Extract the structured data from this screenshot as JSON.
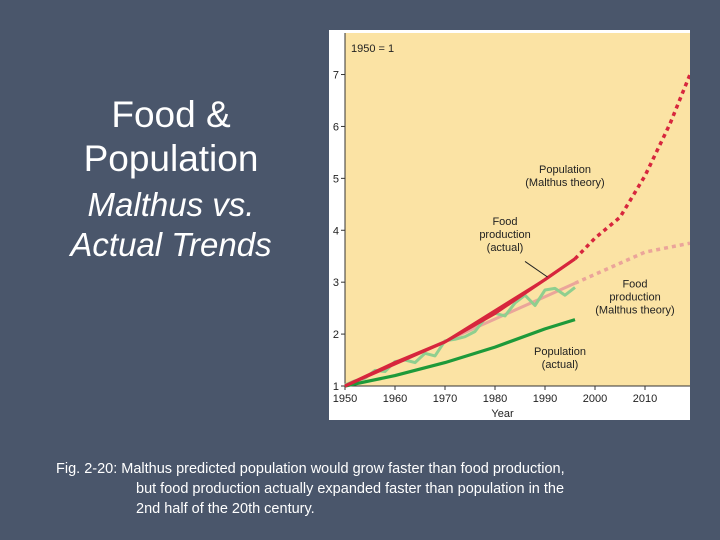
{
  "slide": {
    "title_line1": "Food & Population",
    "title_line2": "Malthus vs. Actual Trends",
    "caption_line1": "Fig. 2-20: Malthus predicted population would grow faster than food production,",
    "caption_line2": "but food production actually expanded faster than population in the",
    "caption_line3": "2nd half of the 20th century."
  },
  "colors": {
    "background": "#4a566b",
    "plot_bg": "#fbe3a4",
    "food_actual": "#d7263d",
    "pop_malthus": "#d7263d",
    "food_malthus": "#eba59a",
    "food_malthus_dotted": "#e8b5ad",
    "pop_actual": "#1e9a3a",
    "pop_actual_wavy": "#8fcf8f"
  },
  "chart_data": {
    "type": "line",
    "title": "",
    "xlabel": "Year",
    "ylabel": "",
    "index_label": "1950 = 1",
    "xlim": [
      1950,
      2019
    ],
    "ylim": [
      1,
      7.8
    ],
    "xticks": [
      1950,
      1960,
      1970,
      1980,
      1990,
      2000,
      2010
    ],
    "yticks": [
      1,
      2,
      3,
      4,
      5,
      6,
      7
    ],
    "grid": false,
    "series": [
      {
        "name": "Food production (actual)",
        "color": "#d7263d",
        "style": "solid",
        "x": [
          1950,
          1960,
          1970,
          1980,
          1990,
          1996
        ],
        "y": [
          1.0,
          1.45,
          1.85,
          2.4,
          3.05,
          3.45
        ]
      },
      {
        "name": "Population (Malthus theory)",
        "color": "#d7263d",
        "style": "solid-then-dotted",
        "x": [
          1950,
          1970,
          1990,
          1996,
          2000,
          2005,
          2010,
          2015,
          2019
        ],
        "y": [
          1.0,
          1.85,
          3.05,
          3.45,
          3.85,
          4.25,
          5.05,
          6.05,
          7.0
        ],
        "dotted_from": 1996
      },
      {
        "name": "Food production (Malthus theory)",
        "color": "#eba59a",
        "style": "solid-then-dotted",
        "x": [
          1950,
          1960,
          1970,
          1980,
          1990,
          1996,
          2000,
          2010,
          2019
        ],
        "y": [
          1.0,
          1.43,
          1.86,
          2.29,
          2.72,
          2.98,
          3.15,
          3.58,
          3.75
        ],
        "dotted_from": 1996
      },
      {
        "name": "Population (actual)",
        "color": "#1e9a3a",
        "style": "solid",
        "x": [
          1950,
          1960,
          1970,
          1980,
          1990,
          1996
        ],
        "y": [
          1.0,
          1.2,
          1.45,
          1.75,
          2.1,
          2.28
        ]
      },
      {
        "name": "Food production (actual, annual)",
        "color": "#8fcf8f",
        "style": "solid-wavy",
        "x": [
          1950,
          1952,
          1954,
          1956,
          1958,
          1960,
          1962,
          1964,
          1966,
          1968,
          1970,
          1972,
          1974,
          1976,
          1978,
          1980,
          1982,
          1984,
          1986,
          1988,
          1990,
          1992,
          1994,
          1996
        ],
        "y": [
          1.02,
          1.1,
          1.15,
          1.3,
          1.28,
          1.47,
          1.5,
          1.45,
          1.63,
          1.58,
          1.87,
          1.9,
          1.95,
          2.05,
          2.3,
          2.4,
          2.35,
          2.6,
          2.75,
          2.55,
          2.85,
          2.88,
          2.75,
          2.9
        ]
      }
    ],
    "annotations": [
      {
        "text_lines": [
          "Population",
          "(Malthus theory)"
        ],
        "x": 1994,
        "y": 5.1
      },
      {
        "text_lines": [
          "Food",
          "production",
          "(actual)"
        ],
        "x": 1982,
        "y": 4.1
      },
      {
        "text_lines": [
          "Food",
          "production",
          "(Malthus theory)"
        ],
        "x": 2008,
        "y": 2.9
      },
      {
        "text_lines": [
          "Population",
          "(actual)"
        ],
        "x": 1993,
        "y": 1.6
      }
    ]
  }
}
